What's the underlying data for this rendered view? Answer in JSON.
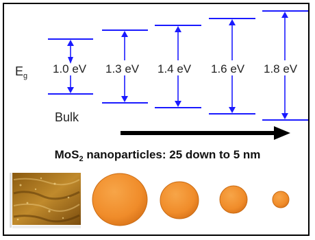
{
  "eg_symbol": "E",
  "eg_subscript": "g",
  "levels": [
    {
      "value": "1.0 eV",
      "label": "Bulk"
    },
    {
      "value": "1.3 eV",
      "label": ""
    },
    {
      "value": "1.4 eV",
      "label": ""
    },
    {
      "value": "1.6 eV",
      "label": ""
    },
    {
      "value": "1.8 eV",
      "label": ""
    }
  ],
  "caption": {
    "prefix": "MoS",
    "subscript": "2",
    "suffix": " nanoparticles: 25 down to 5 nm"
  },
  "colors": {
    "level_lines": "#1a1aff",
    "particle": "#f08c2a",
    "particle_edge": "#c96a12",
    "arrow": "#000000"
  },
  "particles": [
    "afm-image",
    "large-particle",
    "medium-particle",
    "small-particle",
    "smallest-particle"
  ]
}
